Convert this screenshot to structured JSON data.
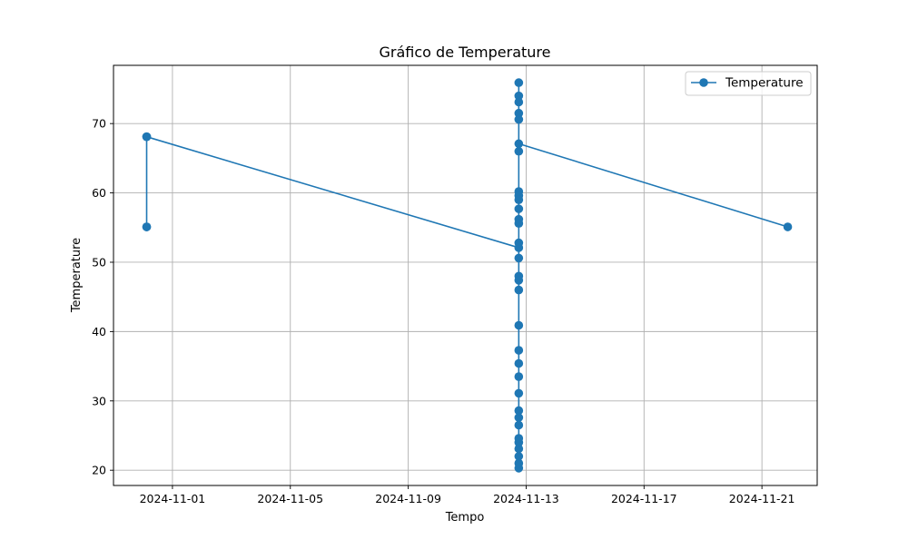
{
  "chart_data": {
    "type": "line",
    "title": "Gráfico de Temperature",
    "xlabel": "Tempo",
    "ylabel": "Temperature",
    "x_ticks": [
      "2024-11-01",
      "2024-11-05",
      "2024-11-09",
      "2024-11-13",
      "2024-11-17",
      "2024-11-21"
    ],
    "y_ticks": [
      20,
      30,
      40,
      50,
      60,
      70
    ],
    "xlim": [
      "2024-10-30T00:00",
      "2024-11-22T21:00"
    ],
    "ylim": [
      17.8,
      78.4
    ],
    "grid": true,
    "legend_position": "top-right",
    "series": [
      {
        "name": "Temperature",
        "color": "#1f77b4",
        "marker": "circle",
        "points": [
          {
            "x": "2024-10-31T03:00",
            "y": 55.1
          },
          {
            "x": "2024-10-31T03:00",
            "y": 68.1
          },
          {
            "x": "2024-10-31T03:00",
            "y": 55.1
          },
          {
            "x": "2024-10-31T03:00",
            "y": 68.1
          },
          {
            "x": "2024-11-12T18:00",
            "y": 52.1
          },
          {
            "x": "2024-11-12T18:00",
            "y": 75.9
          },
          {
            "x": "2024-11-12T18:00",
            "y": 20.3
          },
          {
            "x": "2024-11-12T18:00",
            "y": 74.0
          },
          {
            "x": "2024-11-12T18:00",
            "y": 21.0
          },
          {
            "x": "2024-11-12T18:00",
            "y": 73.1
          },
          {
            "x": "2024-11-12T18:00",
            "y": 22.0
          },
          {
            "x": "2024-11-12T18:00",
            "y": 71.5
          },
          {
            "x": "2024-11-12T18:00",
            "y": 23.1
          },
          {
            "x": "2024-11-12T18:00",
            "y": 70.6
          },
          {
            "x": "2024-11-12T18:00",
            "y": 24.0
          },
          {
            "x": "2024-11-12T18:00",
            "y": 66.0
          },
          {
            "x": "2024-11-12T18:00",
            "y": 24.6
          },
          {
            "x": "2024-11-12T18:00",
            "y": 60.2
          },
          {
            "x": "2024-11-12T18:00",
            "y": 26.5
          },
          {
            "x": "2024-11-12T18:00",
            "y": 59.6
          },
          {
            "x": "2024-11-12T18:00",
            "y": 27.6
          },
          {
            "x": "2024-11-12T18:00",
            "y": 59.0
          },
          {
            "x": "2024-11-12T18:00",
            "y": 28.6
          },
          {
            "x": "2024-11-12T18:00",
            "y": 57.7
          },
          {
            "x": "2024-11-12T18:00",
            "y": 31.1
          },
          {
            "x": "2024-11-12T18:00",
            "y": 56.2
          },
          {
            "x": "2024-11-12T18:00",
            "y": 33.5
          },
          {
            "x": "2024-11-12T18:00",
            "y": 55.6
          },
          {
            "x": "2024-11-12T18:00",
            "y": 35.4
          },
          {
            "x": "2024-11-12T18:00",
            "y": 52.8
          },
          {
            "x": "2024-11-12T18:00",
            "y": 37.3
          },
          {
            "x": "2024-11-12T18:00",
            "y": 50.6
          },
          {
            "x": "2024-11-12T18:00",
            "y": 40.9
          },
          {
            "x": "2024-11-12T18:00",
            "y": 48.0
          },
          {
            "x": "2024-11-12T18:00",
            "y": 46.0
          },
          {
            "x": "2024-11-12T18:00",
            "y": 47.4
          },
          {
            "x": "2024-11-12T18:00",
            "y": 67.1
          },
          {
            "x": "2024-11-21T21:00",
            "y": 55.1
          }
        ]
      }
    ]
  }
}
